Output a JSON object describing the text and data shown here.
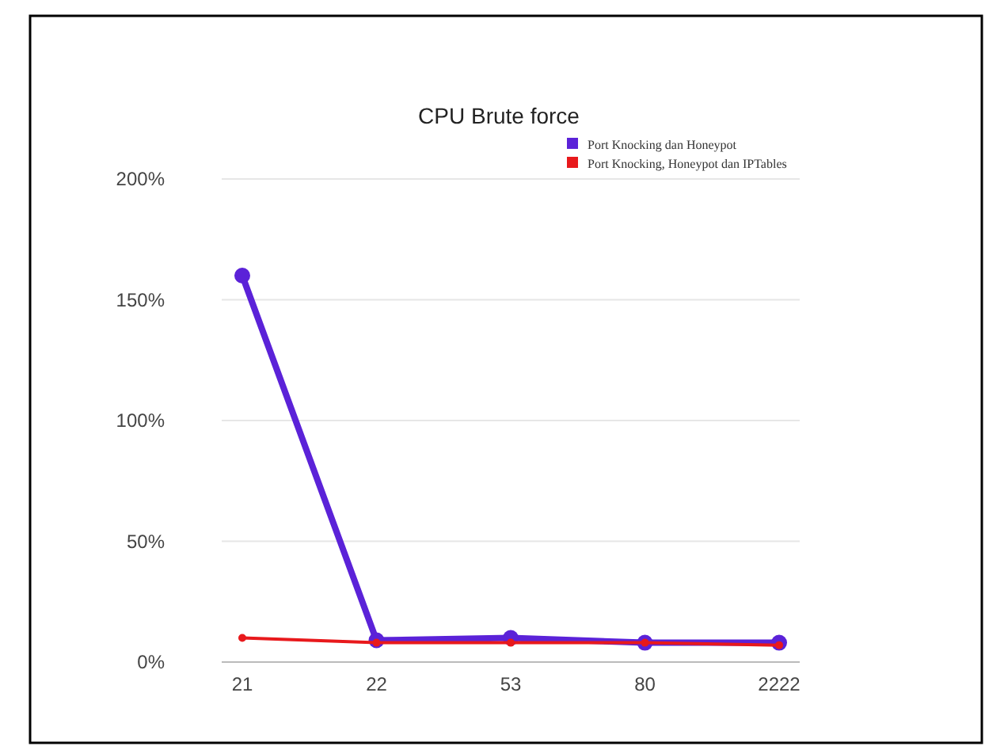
{
  "chart_data": {
    "type": "line",
    "title": "CPU Brute force",
    "categories": [
      "21",
      "22",
      "53",
      "80",
      "2222"
    ],
    "series": [
      {
        "name": "Port Knocking dan Honeypot",
        "color": "#5b22d8",
        "values": [
          160,
          9,
          10,
          8,
          8
        ]
      },
      {
        "name": "Port Knocking, Honeypot dan IPTables",
        "color": "#e8191c",
        "values": [
          10,
          8,
          8,
          8,
          7
        ]
      }
    ],
    "ylim": [
      0,
      200
    ],
    "yticks": [
      {
        "value": 0,
        "label": "0%"
      },
      {
        "value": 50,
        "label": "50%"
      },
      {
        "value": 100,
        "label": "100%"
      },
      {
        "value": 150,
        "label": "150%"
      },
      {
        "value": 200,
        "label": "200%"
      }
    ],
    "grid": "y",
    "legend": "top right",
    "marker": "circle",
    "line_style": "solid"
  }
}
